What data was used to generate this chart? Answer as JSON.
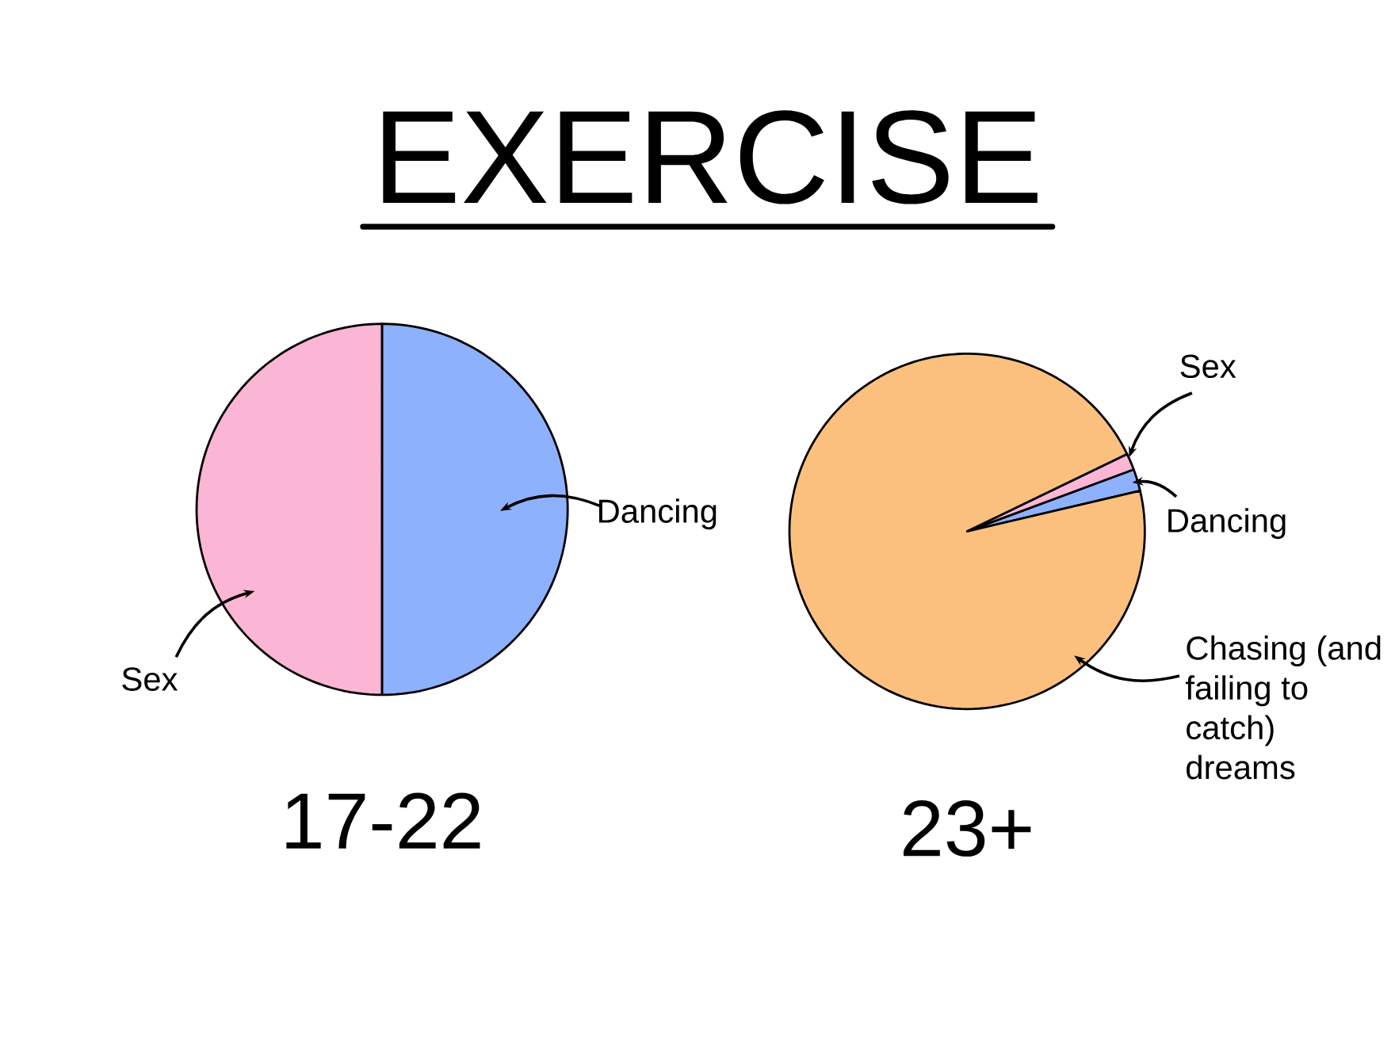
{
  "chart_data": [
    {
      "type": "other",
      "title": "EXERCISE"
    },
    {
      "type": "pie",
      "title": "17-22",
      "categories": [
        "Sex",
        "Dancing"
      ],
      "values": [
        50,
        50
      ],
      "colors": [
        "#fbb5d5",
        "#8db1fd"
      ]
    },
    {
      "type": "pie",
      "title": "23+",
      "categories": [
        "Dancing",
        "Sex",
        "Chasing (and failing to catch) dreams"
      ],
      "values": [
        2,
        1.5,
        96.5
      ],
      "colors": [
        "#8db1fd",
        "#fbb5d5",
        "#fcc07e"
      ]
    }
  ]
}
